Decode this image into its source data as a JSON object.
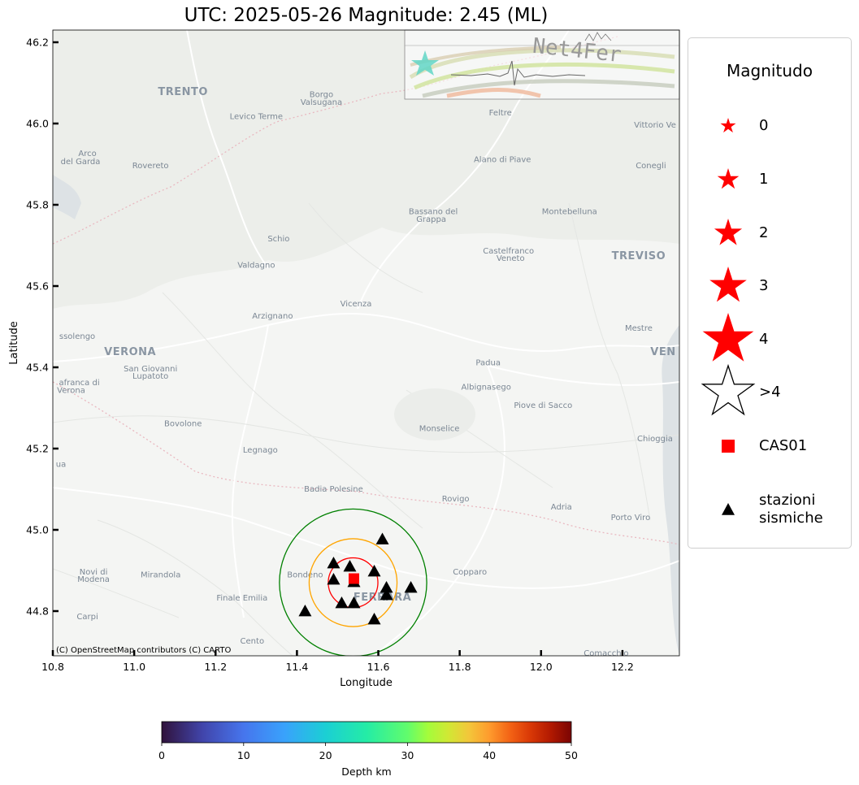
{
  "title": "UTC: 2025-05-26 Magnitude: 2.45 (ML)",
  "map": {
    "xlabel": "Longitude",
    "ylabel": "Latitude",
    "xlim": [
      10.8,
      12.34
    ],
    "ylim": [
      44.69,
      46.23
    ],
    "xticks": [
      "10.8",
      "11.0",
      "11.2",
      "11.4",
      "11.6",
      "11.8",
      "12.0",
      "12.2"
    ],
    "yticks": [
      "44.8",
      "45.0",
      "45.2",
      "45.4",
      "45.6",
      "45.8",
      "46.0",
      "46.2"
    ],
    "attribution": "(C) OpenStreetMap contributors (C) CARTO",
    "logo_text": "Net4Fer",
    "places": [
      {
        "name": "TRENTO",
        "lon": 11.12,
        "lat": 46.07,
        "style": "big"
      },
      {
        "name": "Borgo",
        "lon": 11.46,
        "lat": 46.065,
        "style": "sm"
      },
      {
        "name": "Valsugana",
        "lon": 11.46,
        "lat": 46.046,
        "style": "sm"
      },
      {
        "name": "Levico Terme",
        "lon": 11.3,
        "lat": 46.011,
        "style": "sm"
      },
      {
        "name": "Feltre",
        "lon": 11.9,
        "lat": 46.02,
        "style": "sm"
      },
      {
        "name": "Vittorio Ve",
        "lon": 12.28,
        "lat": 45.99,
        "style": "sm"
      },
      {
        "name": "Arco",
        "lon": 10.885,
        "lat": 45.92,
        "style": "sm"
      },
      {
        "name": "del Garda",
        "lon": 10.868,
        "lat": 45.9,
        "style": "sm"
      },
      {
        "name": "Rovereto",
        "lon": 11.04,
        "lat": 45.89,
        "style": "sm"
      },
      {
        "name": "Alano di Piave",
        "lon": 11.905,
        "lat": 45.905,
        "style": "sm"
      },
      {
        "name": "Conegli",
        "lon": 12.27,
        "lat": 45.89,
        "style": "sm"
      },
      {
        "name": "Bassano del",
        "lon": 11.735,
        "lat": 45.777,
        "style": "sm"
      },
      {
        "name": "Grappa",
        "lon": 11.73,
        "lat": 45.758,
        "style": "sm"
      },
      {
        "name": "Montebelluna",
        "lon": 12.07,
        "lat": 45.777,
        "style": "sm"
      },
      {
        "name": "Schio",
        "lon": 11.355,
        "lat": 45.71,
        "style": "sm"
      },
      {
        "name": "Castelfranco",
        "lon": 11.92,
        "lat": 45.68,
        "style": "sm"
      },
      {
        "name": "Veneto",
        "lon": 11.925,
        "lat": 45.662,
        "style": "sm"
      },
      {
        "name": "TREVISO",
        "lon": 12.24,
        "lat": 45.666,
        "style": "big"
      },
      {
        "name": "Valdagno",
        "lon": 11.3,
        "lat": 45.645,
        "style": "sm"
      },
      {
        "name": "Arzignano",
        "lon": 11.34,
        "lat": 45.52,
        "style": "sm"
      },
      {
        "name": "Vicenza",
        "lon": 11.545,
        "lat": 45.55,
        "style": "sm"
      },
      {
        "name": "Mestre",
        "lon": 12.24,
        "lat": 45.49,
        "style": "sm"
      },
      {
        "name": "ssolengo",
        "lon": 10.86,
        "lat": 45.47,
        "style": "sm"
      },
      {
        "name": "VERONA",
        "lon": 10.99,
        "lat": 45.43,
        "style": "big"
      },
      {
        "name": "VEN",
        "lon": 12.3,
        "lat": 45.43,
        "style": "big"
      },
      {
        "name": "Padua",
        "lon": 11.87,
        "lat": 45.405,
        "style": "sm"
      },
      {
        "name": "San Giovanni",
        "lon": 11.04,
        "lat": 45.39,
        "style": "sm"
      },
      {
        "name": "Lupatoto",
        "lon": 11.04,
        "lat": 45.372,
        "style": "sm"
      },
      {
        "name": "afranca di",
        "lon": 10.865,
        "lat": 45.356,
        "style": "sm"
      },
      {
        "name": "Verona",
        "lon": 10.845,
        "lat": 45.337,
        "style": "sm"
      },
      {
        "name": "Albignasego",
        "lon": 11.865,
        "lat": 45.345,
        "style": "sm"
      },
      {
        "name": "Piove di Sacco",
        "lon": 12.005,
        "lat": 45.3,
        "style": "sm"
      },
      {
        "name": "Bovolone",
        "lon": 11.12,
        "lat": 45.255,
        "style": "sm"
      },
      {
        "name": "Monselice",
        "lon": 11.75,
        "lat": 45.243,
        "style": "sm"
      },
      {
        "name": "Legnago",
        "lon": 11.31,
        "lat": 45.19,
        "style": "sm"
      },
      {
        "name": "Chioggia",
        "lon": 12.28,
        "lat": 45.218,
        "style": "sm"
      },
      {
        "name": "ua",
        "lon": 10.82,
        "lat": 45.155,
        "style": "sm"
      },
      {
        "name": "Badia Polesine",
        "lon": 11.49,
        "lat": 45.094,
        "style": "sm"
      },
      {
        "name": "Rovigo",
        "lon": 11.79,
        "lat": 45.07,
        "style": "sm"
      },
      {
        "name": "Adria",
        "lon": 12.05,
        "lat": 45.05,
        "style": "sm"
      },
      {
        "name": "Porto Viro",
        "lon": 12.22,
        "lat": 45.024,
        "style": "sm"
      },
      {
        "name": "Novi di",
        "lon": 10.9,
        "lat": 44.89,
        "style": "sm"
      },
      {
        "name": "Modena",
        "lon": 10.9,
        "lat": 44.872,
        "style": "sm"
      },
      {
        "name": "Mirandola",
        "lon": 11.065,
        "lat": 44.883,
        "style": "sm"
      },
      {
        "name": "Bondeno",
        "lon": 11.42,
        "lat": 44.883,
        "style": "sm"
      },
      {
        "name": "Copparo",
        "lon": 11.825,
        "lat": 44.89,
        "style": "sm"
      },
      {
        "name": "Finale Emilia",
        "lon": 11.265,
        "lat": 44.826,
        "style": "sm"
      },
      {
        "name": "FERRARA",
        "lon": 11.61,
        "lat": 44.826,
        "style": "big"
      },
      {
        "name": "Carpi",
        "lon": 10.885,
        "lat": 44.78,
        "style": "sm"
      },
      {
        "name": "Cento",
        "lon": 11.29,
        "lat": 44.72,
        "style": "sm"
      },
      {
        "name": "Comacchio",
        "lon": 12.16,
        "lat": 44.69,
        "style": "sm"
      }
    ],
    "stations": [
      {
        "lon": 11.61,
        "lat": 44.977
      },
      {
        "lon": 11.49,
        "lat": 44.918
      },
      {
        "lon": 11.53,
        "lat": 44.91
      },
      {
        "lon": 11.49,
        "lat": 44.878
      },
      {
        "lon": 11.59,
        "lat": 44.898
      },
      {
        "lon": 11.54,
        "lat": 44.872
      },
      {
        "lon": 11.62,
        "lat": 44.858
      },
      {
        "lon": 11.68,
        "lat": 44.858
      },
      {
        "lon": 11.62,
        "lat": 44.84
      },
      {
        "lon": 11.51,
        "lat": 44.82
      },
      {
        "lon": 11.54,
        "lat": 44.82
      },
      {
        "lon": 11.42,
        "lat": 44.8
      },
      {
        "lon": 11.59,
        "lat": 44.78
      }
    ],
    "epicenter": {
      "lon": 11.54,
      "lat": 44.88
    },
    "rings": [
      {
        "lon": 11.538,
        "lat": 44.87,
        "r_deg": 0.061,
        "color": "#ff0000"
      },
      {
        "lon": 11.538,
        "lat": 44.87,
        "r_deg": 0.108,
        "color": "#ffa500"
      },
      {
        "lon": 11.538,
        "lat": 44.87,
        "r_deg": 0.181,
        "color": "#008000"
      }
    ]
  },
  "legend": {
    "title": "Magnitudo",
    "items": [
      {
        "label": "0",
        "kind": "star",
        "size": 20,
        "fill": "#ff0000"
      },
      {
        "label": "1",
        "kind": "star",
        "size": 28,
        "fill": "#ff0000"
      },
      {
        "label": "2",
        "kind": "star",
        "size": 36,
        "fill": "#ff0000"
      },
      {
        "label": "3",
        "kind": "star",
        "size": 48,
        "fill": "#ff0000"
      },
      {
        "label": "4",
        "kind": "star",
        "size": 66,
        "fill": "#ff0000"
      },
      {
        "label": ">4",
        "kind": "star-open",
        "size": 66,
        "fill": "#ffffff"
      },
      {
        "label": "CAS01",
        "kind": "square",
        "size": 16,
        "fill": "#ff0000"
      },
      {
        "label": "stazioni\nsismiche",
        "kind": "triangle",
        "size": 16,
        "fill": "#000000"
      }
    ]
  },
  "colorbar": {
    "label": "Depth km",
    "min": 0,
    "max": 50,
    "ticks": [
      "0",
      "10",
      "20",
      "30",
      "40",
      "50"
    ]
  }
}
